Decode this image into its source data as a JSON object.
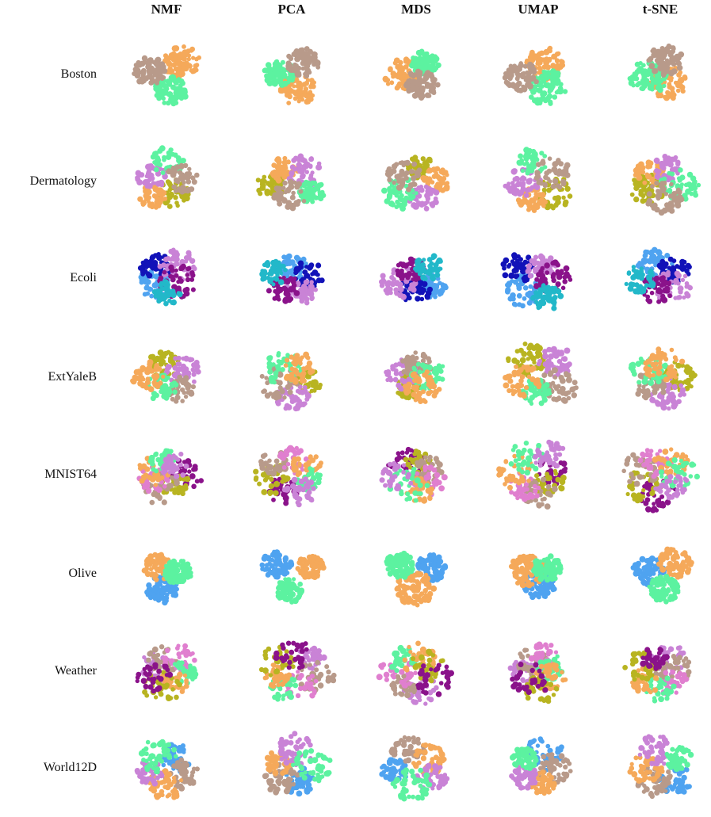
{
  "columns": [
    {
      "key": "nmf",
      "label": "NMF"
    },
    {
      "key": "pca",
      "label": "PCA"
    },
    {
      "key": "mds",
      "label": "MDS"
    },
    {
      "key": "umap",
      "label": "UMAP"
    },
    {
      "key": "tsne",
      "label": "t-SNE"
    }
  ],
  "rows": [
    {
      "key": "boston",
      "label": "Boston"
    },
    {
      "key": "dermatology",
      "label": "Dermatology"
    },
    {
      "key": "ecoli",
      "label": "Ecoli"
    },
    {
      "key": "extyaleb",
      "label": "ExtYaleB"
    },
    {
      "key": "mnist64",
      "label": "MNIST64"
    },
    {
      "key": "olive",
      "label": "Olive"
    },
    {
      "key": "weather",
      "label": "Weather"
    },
    {
      "key": "world12d",
      "label": "World12D"
    }
  ],
  "palette": {
    "orange": "#F5A95A",
    "green": "#5CF2A0",
    "taupe": "#B89A8A",
    "violet": "#C983D6",
    "olive": "#B8B421",
    "blue": "#4FA3F0",
    "navy": "#1212B8",
    "purple": "#8A128A",
    "teal": "#22B8C9",
    "pink": "#E07FCF"
  },
  "chart_data": {
    "type": "scatter",
    "title": "",
    "description_type": "grid of 2D cluster embeddings",
    "cluster_colors_per_row": {
      "boston": [
        "orange",
        "green",
        "taupe"
      ],
      "dermatology": [
        "olive",
        "orange",
        "violet",
        "green",
        "taupe"
      ],
      "ecoli": [
        "blue",
        "navy",
        "violet",
        "purple",
        "teal"
      ],
      "extyaleb": [
        "olive",
        "violet",
        "taupe",
        "green",
        "orange"
      ],
      "mnist64": [
        "purple",
        "olive",
        "taupe",
        "pink",
        "orange",
        "green",
        "violet"
      ],
      "olive": [
        "blue",
        "orange",
        "green"
      ],
      "weather": [
        "violet",
        "taupe",
        "pink",
        "green",
        "orange",
        "olive",
        "purple"
      ],
      "world12d": [
        "blue",
        "taupe",
        "orange",
        "violet",
        "green"
      ]
    }
  }
}
